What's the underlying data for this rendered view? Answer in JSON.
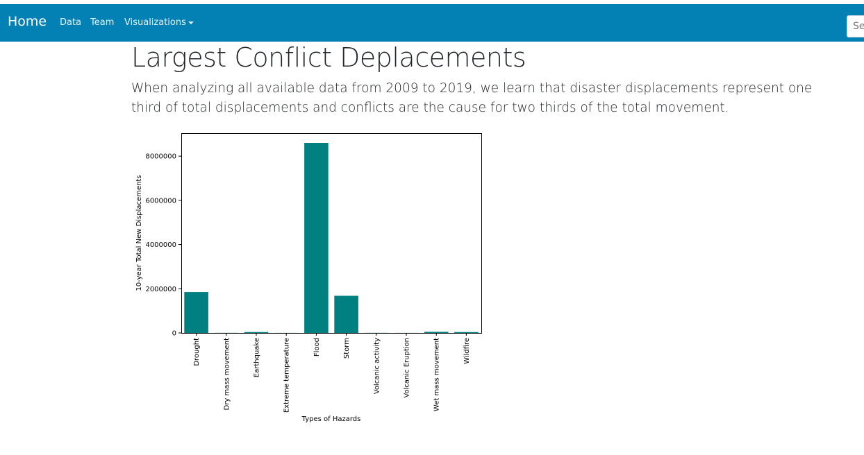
{
  "navbar": {
    "brand": "Home",
    "links": [
      "Data",
      "Team",
      "Visualizations"
    ],
    "search_placeholder": "Search"
  },
  "page": {
    "title": "Largest Conflict Deplacements",
    "lead": "When analyzing all available data from 2009 to 2019, we learn that disaster displacements represent one third of total displacements and conflicts are the cause for two thirds of the total movement."
  },
  "colors": {
    "navbar": "#0380b4",
    "bar": "#008080"
  },
  "chart_data": {
    "type": "bar",
    "categories": [
      "Drought",
      "Dry mass movement",
      "Earthquake",
      "Extreme temperature",
      "Flood",
      "Storm",
      "Volcanic activity",
      "Volcanic Eruption",
      "Wet mass movement",
      "Wildfire"
    ],
    "values": [
      1850000,
      5000,
      40000,
      3000,
      8600000,
      1680000,
      5000,
      3000,
      50000,
      40000
    ],
    "xlabel": "Types of Hazards",
    "ylabel": "10-year Total New Displacements",
    "yticks": [
      0,
      2000000,
      4000000,
      6000000,
      8000000
    ],
    "ylim": [
      0,
      9040000
    ],
    "grid": false
  }
}
